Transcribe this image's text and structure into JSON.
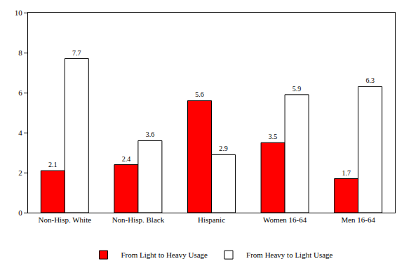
{
  "chart_data": {
    "type": "bar",
    "categories": [
      "Non-Hisp. White",
      "Non-Hisp. Black",
      "Hispanic",
      "Women 16-64",
      "Men 16-64"
    ],
    "series": [
      {
        "name": "From Light to Heavy Usage",
        "color": "#ff0000",
        "values": [
          2.1,
          2.4,
          5.6,
          3.5,
          1.7
        ]
      },
      {
        "name": "From Heavy to Light Usage",
        "color": "#ffffff",
        "values": [
          7.7,
          3.6,
          2.9,
          5.9,
          6.3
        ]
      }
    ],
    "ylim": [
      0,
      10
    ],
    "yticks": [
      0,
      2,
      4,
      6,
      8,
      10
    ],
    "grid": false,
    "legend": "bottom",
    "data_labels": true
  }
}
